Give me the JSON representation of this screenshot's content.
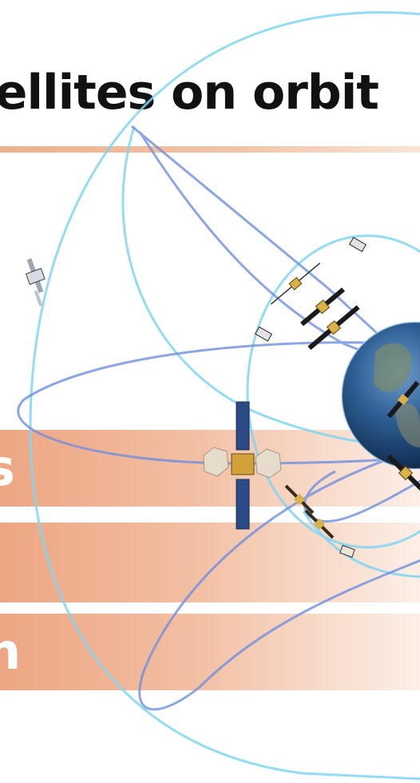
{
  "slide": {
    "title": "tellites on orbit",
    "bands": [
      "s",
      "",
      "n"
    ]
  },
  "colors": {
    "orbit_cyan": "#7fd6f4",
    "orbit_blue": "#6f8fe0",
    "band_orange": "#eda683",
    "title_text": "#111111"
  },
  "icons": [
    "satellite-icon",
    "earth-globe-icon"
  ]
}
